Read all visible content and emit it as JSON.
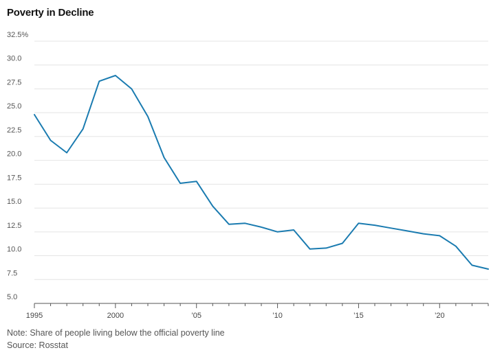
{
  "title": "Poverty in Decline",
  "note": "Note: Share of people living below the official poverty line",
  "source": "Source: Rosstat",
  "colors": {
    "line": "#1a7bb0",
    "grid": "#e4e4e4",
    "axis": "#555555"
  },
  "chart_data": {
    "type": "line",
    "title": "Poverty in Decline",
    "xlabel": "",
    "ylabel": "",
    "ylim": [
      5,
      32.5
    ],
    "xlim": [
      1995,
      2023
    ],
    "y_ticks": [
      5.0,
      7.5,
      10.0,
      12.5,
      15.0,
      17.5,
      20.0,
      22.5,
      25.0,
      27.5,
      30.0,
      32.5
    ],
    "y_tick_labels": [
      "5.0",
      "7.5",
      "10.0",
      "12.5",
      "15.0",
      "17.5",
      "20.0",
      "22.5",
      "25.0",
      "27.5",
      "30.0",
      "32.5%"
    ],
    "x_ticks": [
      1995,
      2000,
      2005,
      2010,
      2015,
      2020
    ],
    "x_tick_labels": [
      "1995",
      "2000",
      "’05",
      "’10",
      "’15",
      "’20"
    ],
    "grid": true,
    "x": [
      1995,
      1996,
      1997,
      1998,
      1999,
      2000,
      2001,
      2002,
      2003,
      2004,
      2005,
      2006,
      2007,
      2008,
      2009,
      2010,
      2011,
      2012,
      2013,
      2014,
      2015,
      2016,
      2017,
      2018,
      2019,
      2020,
      2021,
      2022,
      2023
    ],
    "series": [
      {
        "values": [
          24.8,
          22.1,
          20.8,
          23.3,
          28.3,
          28.9,
          27.5,
          24.6,
          20.3,
          17.6,
          17.8,
          15.2,
          13.3,
          13.4,
          13.0,
          12.5,
          12.7,
          10.7,
          10.8,
          11.3,
          13.4,
          13.2,
          12.9,
          12.6,
          12.3,
          12.1,
          11.0,
          9.0,
          8.6
        ]
      }
    ]
  }
}
